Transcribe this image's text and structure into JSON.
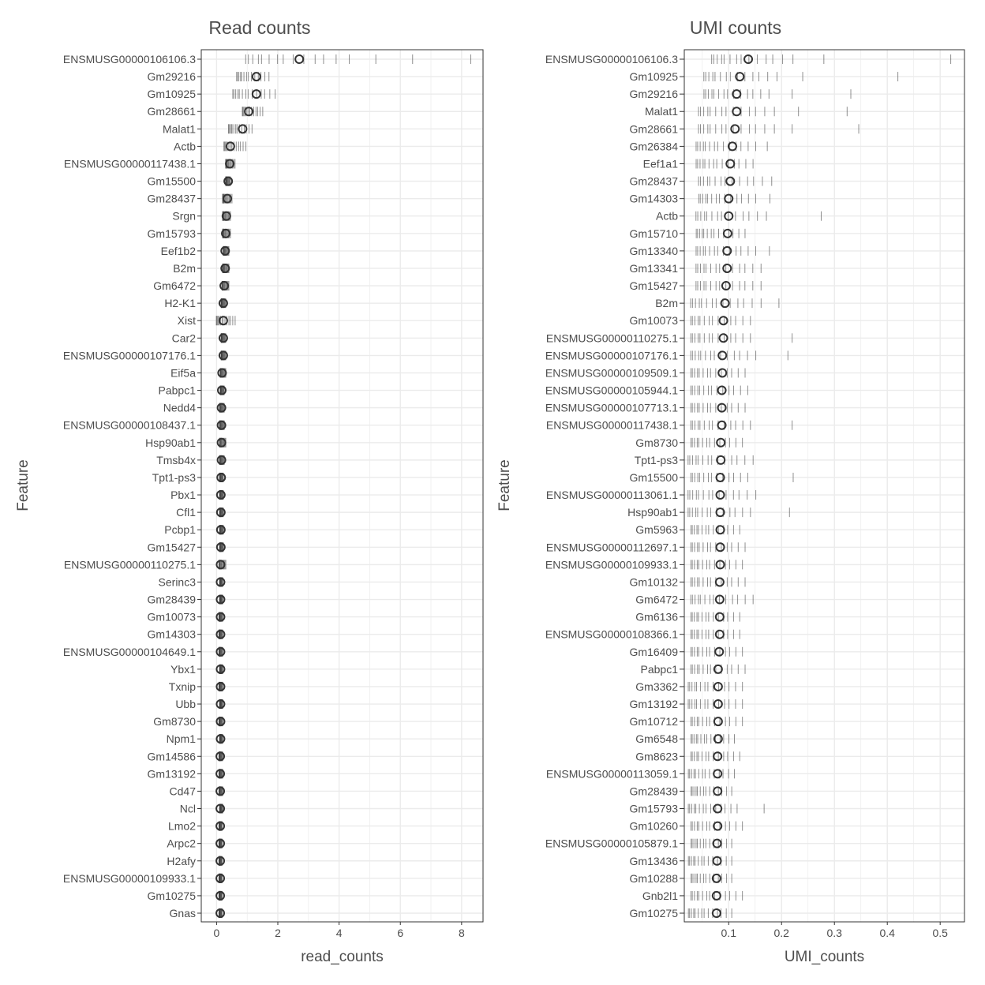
{
  "chart_data": [
    {
      "type": "scatter",
      "title": "Read counts",
      "xlabel": "read_counts",
      "ylabel": "Feature",
      "xlim": [
        -0.5,
        8.7
      ],
      "xticks": [
        0,
        2,
        4,
        6,
        8
      ],
      "grid": true,
      "columns": [
        "feature",
        "median",
        "min",
        "max",
        "extra"
      ],
      "rows": [
        [
          "ENSMUSG00000106106.3",
          2.7,
          1.0,
          4.3,
          [
            5.2,
            6.4,
            8.3
          ]
        ],
        [
          "Gm29216",
          1.3,
          0.67,
          1.7,
          []
        ],
        [
          "Gm10925",
          1.3,
          0.55,
          1.9,
          []
        ],
        [
          "Gm28661",
          1.05,
          0.85,
          1.5,
          []
        ],
        [
          "Malat1",
          0.85,
          0.4,
          1.15,
          []
        ],
        [
          "Actb",
          0.45,
          0.25,
          0.95,
          []
        ],
        [
          "ENSMUSG00000117438.1",
          0.43,
          0.3,
          0.6,
          []
        ],
        [
          "Gm15500",
          0.38,
          0.3,
          0.45,
          []
        ],
        [
          "Gm28437",
          0.35,
          0.2,
          0.5,
          []
        ],
        [
          "Srgn",
          0.32,
          0.2,
          0.45,
          []
        ],
        [
          "Gm15793",
          0.3,
          0.2,
          0.45,
          []
        ],
        [
          "Eef1b2",
          0.28,
          0.22,
          0.4,
          []
        ],
        [
          "B2m",
          0.28,
          0.2,
          0.4,
          []
        ],
        [
          "Gm6472",
          0.25,
          0.18,
          0.4,
          []
        ],
        [
          "H2-K1",
          0.22,
          0.15,
          0.3,
          []
        ],
        [
          "Xist",
          0.22,
          0.0,
          0.6,
          []
        ],
        [
          "Car2",
          0.22,
          0.15,
          0.3,
          []
        ],
        [
          "ENSMUSG00000107176.1",
          0.22,
          0.15,
          0.3,
          []
        ],
        [
          "Eif5a",
          0.18,
          0.12,
          0.3,
          []
        ],
        [
          "Pabpc1",
          0.17,
          0.12,
          0.25,
          []
        ],
        [
          "Nedd4",
          0.16,
          0.1,
          0.25,
          []
        ],
        [
          "ENSMUSG00000108437.1",
          0.16,
          0.1,
          0.25,
          []
        ],
        [
          "Hsp90ab1",
          0.16,
          0.1,
          0.3,
          []
        ],
        [
          "Tmsb4x",
          0.16,
          0.1,
          0.25,
          []
        ],
        [
          "Tpt1-ps3",
          0.15,
          0.1,
          0.22,
          []
        ],
        [
          "Pbx1",
          0.14,
          0.1,
          0.22,
          []
        ],
        [
          "Cfl1",
          0.14,
          0.1,
          0.22,
          []
        ],
        [
          "Pcbp1",
          0.14,
          0.1,
          0.22,
          []
        ],
        [
          "Gm15427",
          0.14,
          0.1,
          0.22,
          []
        ],
        [
          "ENSMUSG00000110275.1",
          0.13,
          0.08,
          0.3,
          []
        ],
        [
          "Serinc3",
          0.13,
          0.1,
          0.2,
          []
        ],
        [
          "Gm28439",
          0.13,
          0.1,
          0.2,
          []
        ],
        [
          "Gm10073",
          0.13,
          0.08,
          0.2,
          []
        ],
        [
          "Gm14303",
          0.13,
          0.08,
          0.2,
          []
        ],
        [
          "ENSMUSG00000104649.1",
          0.13,
          0.08,
          0.2,
          []
        ],
        [
          "Ybx1",
          0.13,
          0.1,
          0.2,
          []
        ],
        [
          "Txnip",
          0.13,
          0.08,
          0.2,
          []
        ],
        [
          "Ubb",
          0.13,
          0.1,
          0.2,
          []
        ],
        [
          "Gm8730",
          0.13,
          0.08,
          0.2,
          []
        ],
        [
          "Npm1",
          0.13,
          0.1,
          0.2,
          []
        ],
        [
          "Gm14586",
          0.12,
          0.08,
          0.2,
          []
        ],
        [
          "Gm13192",
          0.12,
          0.08,
          0.2,
          []
        ],
        [
          "Cd47",
          0.12,
          0.08,
          0.2,
          []
        ],
        [
          "Ncl",
          0.12,
          0.1,
          0.2,
          []
        ],
        [
          "Lmo2",
          0.12,
          0.08,
          0.18,
          []
        ],
        [
          "Arpc2",
          0.12,
          0.08,
          0.18,
          []
        ],
        [
          "H2afy",
          0.12,
          0.08,
          0.18,
          []
        ],
        [
          "ENSMUSG00000109933.1",
          0.12,
          0.08,
          0.18,
          []
        ],
        [
          "Gm10275",
          0.12,
          0.08,
          0.18,
          []
        ],
        [
          "Gnas",
          0.12,
          0.08,
          0.18,
          []
        ]
      ]
    },
    {
      "type": "scatter",
      "title": "UMI counts",
      "xlabel": "UMI_counts",
      "ylabel": "Feature",
      "xlim": [
        0.016,
        0.546
      ],
      "xticks": [
        0.1,
        0.2,
        0.3,
        0.4,
        0.5
      ],
      "grid": true,
      "columns": [
        "feature",
        "median",
        "min",
        "max",
        "extra"
      ],
      "rows": [
        [
          "ENSMUSG00000106106.3",
          0.137,
          0.07,
          0.22,
          [
            0.28,
            0.52
          ]
        ],
        [
          "Gm10925",
          0.121,
          0.055,
          0.19,
          [
            0.24,
            0.42
          ]
        ],
        [
          "Gm29216",
          0.115,
          0.055,
          0.175,
          [
            0.22,
            0.331
          ]
        ],
        [
          "Malat1",
          0.115,
          0.045,
          0.185,
          [
            0.232,
            0.324
          ]
        ],
        [
          "Gm28661",
          0.112,
          0.045,
          0.185,
          [
            0.22,
            0.346
          ]
        ],
        [
          "Gm26384",
          0.107,
          0.04,
          0.15,
          [
            0.173
          ]
        ],
        [
          "Eef1a1",
          0.103,
          0.04,
          0.145,
          []
        ],
        [
          "Gm28437",
          0.103,
          0.045,
          0.18,
          []
        ],
        [
          "Gm14303",
          0.1,
          0.045,
          0.15,
          [
            0.178
          ]
        ],
        [
          "Actb",
          0.1,
          0.04,
          0.17,
          [
            0.275
          ]
        ],
        [
          "Gm15710",
          0.098,
          0.04,
          0.13,
          []
        ],
        [
          "Gm13340",
          0.097,
          0.04,
          0.15,
          [
            0.177
          ]
        ],
        [
          "Gm13341",
          0.097,
          0.04,
          0.16,
          []
        ],
        [
          "Gm15427",
          0.095,
          0.04,
          0.16,
          []
        ],
        [
          "B2m",
          0.093,
          0.03,
          0.16,
          [
            0.195
          ]
        ],
        [
          "Gm10073",
          0.09,
          0.03,
          0.14,
          []
        ],
        [
          "ENSMUSG00000110275.1",
          0.09,
          0.03,
          0.14,
          [
            0.22
          ]
        ],
        [
          "ENSMUSG00000107176.1",
          0.088,
          0.03,
          0.15,
          [
            0.212
          ]
        ],
        [
          "ENSMUSG00000109509.1",
          0.088,
          0.03,
          0.13,
          []
        ],
        [
          "ENSMUSG00000105944.1",
          0.087,
          0.03,
          0.135,
          []
        ],
        [
          "ENSMUSG00000107713.1",
          0.087,
          0.03,
          0.13,
          []
        ],
        [
          "ENSMUSG00000117438.1",
          0.087,
          0.03,
          0.14,
          [
            0.22
          ]
        ],
        [
          "Gm8730",
          0.085,
          0.03,
          0.125,
          []
        ],
        [
          "Tpt1-ps3",
          0.085,
          0.025,
          0.145,
          []
        ],
        [
          "Gm15500",
          0.084,
          0.03,
          0.135,
          [
            0.222
          ]
        ],
        [
          "ENSMUSG00000113061.1",
          0.084,
          0.025,
          0.15,
          []
        ],
        [
          "Hsp90ab1",
          0.084,
          0.025,
          0.14,
          [
            0.215
          ]
        ],
        [
          "Gm5963",
          0.084,
          0.03,
          0.12,
          []
        ],
        [
          "ENSMUSG00000112697.1",
          0.084,
          0.03,
          0.13,
          []
        ],
        [
          "ENSMUSG00000109933.1",
          0.084,
          0.03,
          0.125,
          []
        ],
        [
          "Gm10132",
          0.083,
          0.03,
          0.13,
          []
        ],
        [
          "Gm6472",
          0.083,
          0.03,
          0.145,
          []
        ],
        [
          "Gm6136",
          0.083,
          0.03,
          0.12,
          []
        ],
        [
          "ENSMUSG00000108366.1",
          0.083,
          0.03,
          0.12,
          []
        ],
        [
          "Gm16409",
          0.082,
          0.03,
          0.125,
          []
        ],
        [
          "Pabpc1",
          0.08,
          0.03,
          0.13,
          []
        ],
        [
          "Gm3362",
          0.08,
          0.025,
          0.125,
          []
        ],
        [
          "Gm13192",
          0.08,
          0.025,
          0.125,
          []
        ],
        [
          "Gm10712",
          0.08,
          0.03,
          0.125,
          []
        ],
        [
          "Gm6548",
          0.08,
          0.03,
          0.11,
          []
        ],
        [
          "Gm8623",
          0.079,
          0.03,
          0.12,
          []
        ],
        [
          "ENSMUSG00000113059.1",
          0.079,
          0.025,
          0.11,
          []
        ],
        [
          "Gm28439",
          0.079,
          0.03,
          0.105,
          []
        ],
        [
          "Gm15793",
          0.079,
          0.025,
          0.115,
          [
            0.167
          ]
        ],
        [
          "Gm10260",
          0.079,
          0.03,
          0.125,
          []
        ],
        [
          "ENSMUSG00000105879.1",
          0.078,
          0.03,
          0.105,
          []
        ],
        [
          "Gm13436",
          0.078,
          0.025,
          0.105,
          []
        ],
        [
          "Gm10288",
          0.077,
          0.03,
          0.105,
          []
        ],
        [
          "Gnb2l1",
          0.077,
          0.03,
          0.125,
          []
        ],
        [
          "Gm10275",
          0.077,
          0.025,
          0.105,
          []
        ]
      ]
    }
  ]
}
